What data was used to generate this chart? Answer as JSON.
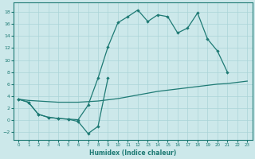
{
  "xlabel": "Humidex (Indice chaleur)",
  "bg_color": "#cce8ea",
  "grid_color": "#aad4d8",
  "line_color": "#1e7a74",
  "xlim": [
    -0.5,
    23.5
  ],
  "ylim": [
    -3.2,
    19.5
  ],
  "xticks": [
    0,
    1,
    2,
    3,
    4,
    5,
    6,
    7,
    8,
    9,
    10,
    11,
    12,
    13,
    14,
    15,
    16,
    17,
    18,
    19,
    20,
    21,
    22,
    23
  ],
  "yticks": [
    -2,
    0,
    2,
    4,
    6,
    8,
    10,
    12,
    14,
    16,
    18
  ],
  "line1_x": [
    0,
    1,
    2,
    3,
    4,
    5,
    6,
    7,
    8,
    9,
    10,
    11,
    12,
    13,
    14,
    15,
    16,
    17,
    18,
    19,
    20,
    21
  ],
  "line1_y": [
    3.5,
    3.0,
    1.0,
    0.5,
    0.3,
    0.2,
    0.1,
    2.5,
    7.0,
    12.2,
    16.2,
    17.2,
    18.3,
    16.4,
    17.5,
    17.2,
    14.5,
    15.3,
    17.8,
    13.5,
    11.5,
    8.0
  ],
  "line2_x": [
    0,
    1,
    2,
    3,
    4,
    5,
    6,
    7,
    8,
    9
  ],
  "line2_y": [
    3.5,
    3.0,
    1.0,
    0.5,
    0.3,
    0.2,
    -0.2,
    -2.2,
    -1.0,
    7.0
  ],
  "line3_x": [
    0,
    1,
    2,
    3,
    4,
    5,
    6,
    7,
    8,
    9,
    10,
    11,
    12,
    13,
    14,
    15,
    16,
    17,
    18,
    19,
    20,
    21,
    22,
    23
  ],
  "line3_y": [
    3.5,
    3.3,
    3.2,
    3.1,
    3.0,
    3.0,
    3.0,
    3.1,
    3.2,
    3.4,
    3.6,
    3.9,
    4.2,
    4.5,
    4.8,
    5.0,
    5.2,
    5.4,
    5.6,
    5.8,
    6.0,
    6.1,
    6.3,
    6.5
  ]
}
